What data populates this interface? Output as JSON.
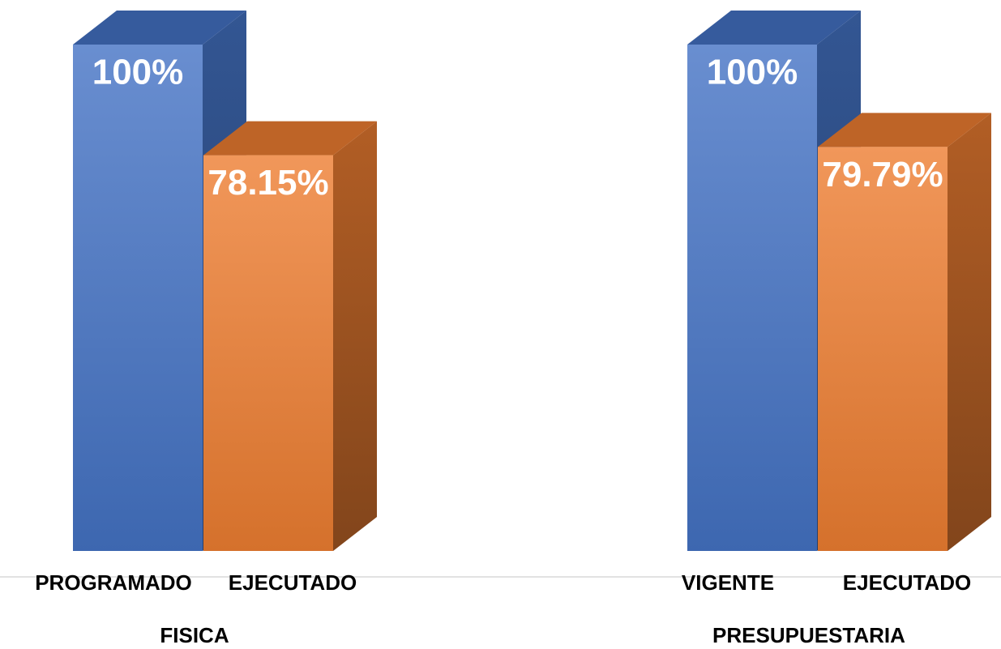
{
  "chart_data": [
    {
      "type": "bar",
      "title": "FISICA",
      "categories": [
        "PROGRAMADO",
        "EJECUTADO"
      ],
      "values": [
        100,
        78.15
      ],
      "value_labels": [
        "100%",
        "78.15%"
      ],
      "colors": [
        "#4472c4",
        "#ed7d31"
      ]
    },
    {
      "type": "bar",
      "title": "PRESUPUESTARIA",
      "categories": [
        "VIGENTE",
        "EJECUTADO"
      ],
      "values": [
        100,
        79.79
      ],
      "value_labels": [
        "100%",
        "79.79%"
      ],
      "colors": [
        "#4472c4",
        "#ed7d31"
      ]
    }
  ]
}
